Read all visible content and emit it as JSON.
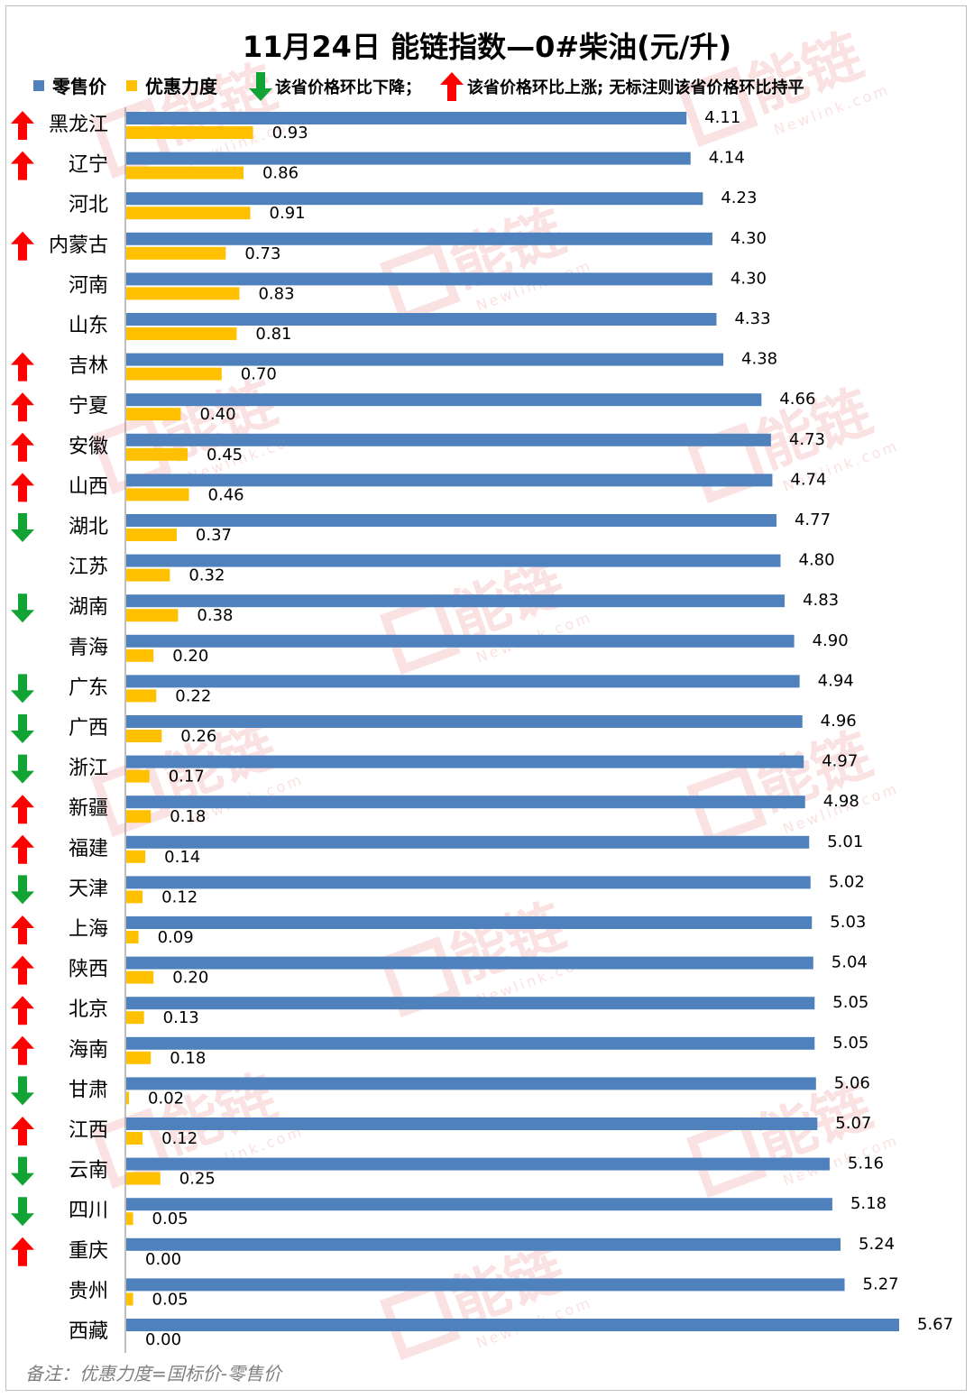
{
  "chart_data": {
    "type": "bar",
    "title": "11月24日  能链指数—0#柴油(元/升)",
    "legend": {
      "retail": "零售价",
      "discount": "优惠力度",
      "down_text": "该省价格环比下降；",
      "up_text": "该省价格环比上涨;  无标注则该省价格环比持平"
    },
    "categories": [
      "黑龙江",
      "辽宁",
      "河北",
      "内蒙古",
      "河南",
      "山东",
      "吉林",
      "宁夏",
      "安徽",
      "山西",
      "湖北",
      "江苏",
      "湖南",
      "青海",
      "广东",
      "广西",
      "浙江",
      "新疆",
      "福建",
      "天津",
      "上海",
      "陕西",
      "北京",
      "海南",
      "甘肃",
      "江西",
      "云南",
      "四川",
      "重庆",
      "贵州",
      "西藏"
    ],
    "trend": [
      "up",
      "up",
      "",
      "up",
      "",
      "",
      "up",
      "up",
      "up",
      "up",
      "down",
      "",
      "down",
      "",
      "down",
      "down",
      "down",
      "up",
      "up",
      "down",
      "up",
      "up",
      "up",
      "up",
      "down",
      "up",
      "down",
      "down",
      "up",
      "",
      ""
    ],
    "series": [
      {
        "name": "零售价",
        "values": [
          4.11,
          4.14,
          4.23,
          4.3,
          4.3,
          4.33,
          4.38,
          4.66,
          4.73,
          4.74,
          4.77,
          4.8,
          4.83,
          4.9,
          4.94,
          4.96,
          4.97,
          4.98,
          5.01,
          5.02,
          5.03,
          5.04,
          5.05,
          5.05,
          5.06,
          5.07,
          5.16,
          5.18,
          5.24,
          5.27,
          5.67
        ]
      },
      {
        "name": "优惠力度",
        "values": [
          0.93,
          0.86,
          0.91,
          0.73,
          0.83,
          0.81,
          0.7,
          0.4,
          0.45,
          0.46,
          0.37,
          0.32,
          0.38,
          0.2,
          0.22,
          0.26,
          0.17,
          0.18,
          0.14,
          0.12,
          0.09,
          0.2,
          0.13,
          0.18,
          0.02,
          0.12,
          0.25,
          0.05,
          0.0,
          0.05,
          0.0
        ]
      }
    ],
    "value_labels": {
      "retail": [
        "4.11",
        "4.14",
        "4.23",
        "4.30",
        "4.30",
        "4.33",
        "4.38",
        "4.66",
        "4.73",
        "4.74",
        "4.77",
        "4.80",
        "4.83",
        "4.90",
        "4.94",
        "4.96",
        "4.97",
        "4.98",
        "5.01",
        "5.02",
        "5.03",
        "5.04",
        "5.05",
        "5.05",
        "5.06",
        "5.07",
        "5.16",
        "5.18",
        "5.24",
        "5.27",
        "5.67"
      ],
      "discount": [
        "0.93",
        "0.86",
        "0.91",
        "0.73",
        "0.83",
        "0.81",
        "0.70",
        "0.40",
        "0.45",
        "0.46",
        "0.37",
        "0.32",
        "0.38",
        "0.20",
        "0.22",
        "0.26",
        "0.17",
        "0.18",
        "0.14",
        "0.12",
        "0.09",
        "0.20",
        "0.13",
        "0.18",
        "0.02",
        "0.12",
        "0.25",
        "0.05",
        "0.00",
        "0.05",
        "0.00"
      ]
    },
    "xlim": [
      0,
      5.67
    ],
    "grid": false,
    "legend_placement": "top",
    "footnote": "备注：优惠力度=国标价-零售价",
    "watermark": "能链 Newlink.com",
    "colors": {
      "retail": "#4f81bd",
      "discount": "#ffc000",
      "up": "#ff0000",
      "down": "#12a335",
      "watermark": "#f6c9cc",
      "text": "#000000",
      "footnote": "#7f7f7f"
    }
  }
}
